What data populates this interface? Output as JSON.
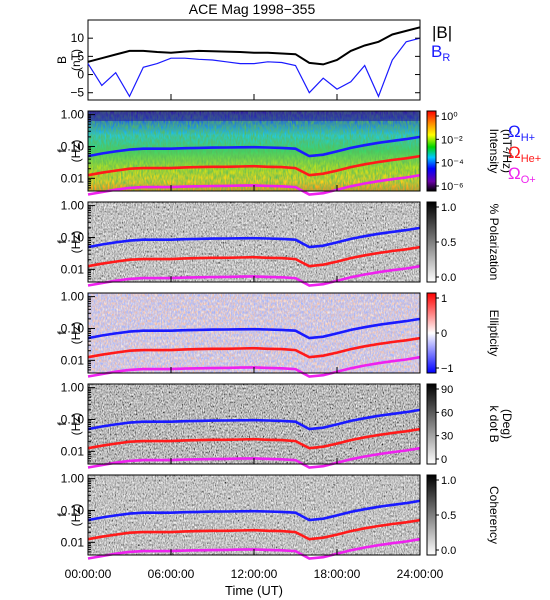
{
  "title": "ACE Mag 1998−355",
  "x_axis": {
    "label": "Time (UT)",
    "ticks": [
      "00:00:00",
      "06:00:00",
      "12:00:00",
      "18:00:00",
      "24:00:00"
    ],
    "range_hours": [
      0,
      24
    ]
  },
  "panel_b": {
    "ylabel_top": "B",
    "ylabel_bottom": "(nT)",
    "yticks": [
      "10",
      "5",
      "0",
      "−5"
    ],
    "legend_b": "|B|",
    "legend_br": "B",
    "legend_br_sub": "R",
    "colors": {
      "b": "#000000",
      "br": "#1a1aff"
    }
  },
  "freq_axis": {
    "label_top": "f",
    "label_bottom": "(Hz)",
    "ticks": [
      "1.00",
      "0.10",
      "0.01"
    ]
  },
  "gyro_legend": [
    {
      "symbol": "Ω",
      "sub": "H+",
      "color": "#1a1aff"
    },
    {
      "symbol": "Ω",
      "sub": "He+",
      "color": "#ff1a1a"
    },
    {
      "symbol": "Ω",
      "sub": "O+",
      "color": "#ee22ee"
    }
  ],
  "spectrogram_panels": [
    {
      "id": "intensity",
      "colorbar_label_1": "Intensity",
      "colorbar_label_2": "(nT²/Hz)",
      "colorbar_ticks": [
        "10⁰",
        "10⁻²",
        "10⁻⁴",
        "10⁻⁶"
      ],
      "colormap": "rainbow"
    },
    {
      "id": "polarization",
      "colorbar_label_1": "% Polarization",
      "colorbar_label_2": "",
      "colorbar_ticks": [
        "1.0",
        "0.5",
        "0.0"
      ],
      "colormap": "gray"
    },
    {
      "id": "ellipticity",
      "colorbar_label_1": "Ellipticity",
      "colorbar_label_2": "",
      "colorbar_ticks": [
        "1",
        "0",
        "−1"
      ],
      "colormap": "bwr"
    },
    {
      "id": "kdotb",
      "colorbar_label_1": "k dot B",
      "colorbar_label_2": "(Deg)",
      "colorbar_ticks": [
        "90",
        "60",
        "30",
        "0"
      ],
      "colormap": "gray"
    },
    {
      "id": "coherency",
      "colorbar_label_1": "Coherency",
      "colorbar_label_2": "",
      "colorbar_ticks": [
        "1.0",
        "0.5",
        "0.0"
      ],
      "colormap": "gray"
    }
  ],
  "chart_data": [
    {
      "type": "line",
      "title": "ACE Mag 1998−355",
      "xlabel": "",
      "ylabel": "B (nT)",
      "x_hours": [
        0,
        1,
        2,
        3,
        4,
        5,
        6,
        7,
        8,
        9,
        10,
        11,
        12,
        13,
        14,
        15,
        16,
        17,
        18,
        19,
        20,
        21,
        22,
        23,
        24
      ],
      "ylim": [
        -7,
        15
      ],
      "yticks": [
        10,
        5,
        0,
        -5
      ],
      "series": [
        {
          "name": "|B|",
          "values": [
            3.5,
            4.5,
            5.5,
            6.5,
            6.5,
            6.2,
            6.0,
            6.3,
            6.5,
            6.4,
            6.3,
            6.2,
            6.0,
            6.0,
            5.8,
            5.6,
            3.2,
            2.8,
            4.0,
            6.5,
            8.0,
            9.0,
            11.0,
            12.0,
            13.0
          ]
        },
        {
          "name": "B_R",
          "values": [
            3.0,
            -3.0,
            0.5,
            -6.0,
            2.0,
            3.0,
            4.5,
            4.5,
            4.2,
            4.0,
            3.5,
            3.0,
            3.0,
            3.5,
            3.3,
            2.5,
            -5.0,
            -1.0,
            -4.0,
            -2.0,
            2.5,
            -6.0,
            4.0,
            9.0,
            10.0
          ]
        }
      ]
    },
    {
      "type": "line",
      "xlabel": "Time (UT)",
      "ylabel": "f (Hz)",
      "y_scale": "log",
      "ylim": [
        0.004,
        1.3
      ],
      "x_hours": [
        0,
        1,
        2,
        3,
        4,
        5,
        6,
        7,
        8,
        9,
        10,
        11,
        12,
        13,
        14,
        15,
        16,
        17,
        18,
        19,
        20,
        21,
        22,
        23,
        24
      ],
      "series": [
        {
          "name": "ΩH+",
          "values": [
            0.05,
            0.06,
            0.07,
            0.08,
            0.085,
            0.085,
            0.085,
            0.088,
            0.09,
            0.092,
            0.093,
            0.094,
            0.095,
            0.093,
            0.09,
            0.085,
            0.05,
            0.055,
            0.07,
            0.09,
            0.11,
            0.13,
            0.15,
            0.17,
            0.2
          ]
        },
        {
          "name": "ΩHe+",
          "values": [
            0.0125,
            0.015,
            0.0175,
            0.02,
            0.021,
            0.021,
            0.021,
            0.022,
            0.0225,
            0.023,
            0.023,
            0.0235,
            0.024,
            0.023,
            0.0225,
            0.021,
            0.0125,
            0.014,
            0.0175,
            0.0225,
            0.0275,
            0.0325,
            0.0375,
            0.0425,
            0.05
          ]
        },
        {
          "name": "ΩO+",
          "values": [
            0.0031,
            0.0037,
            0.0044,
            0.005,
            0.0053,
            0.0053,
            0.0053,
            0.0055,
            0.0056,
            0.0057,
            0.0058,
            0.0059,
            0.006,
            0.0058,
            0.0056,
            0.0053,
            0.0031,
            0.0034,
            0.0044,
            0.0056,
            0.0069,
            0.0081,
            0.0094,
            0.0106,
            0.0125
          ]
        }
      ]
    }
  ]
}
